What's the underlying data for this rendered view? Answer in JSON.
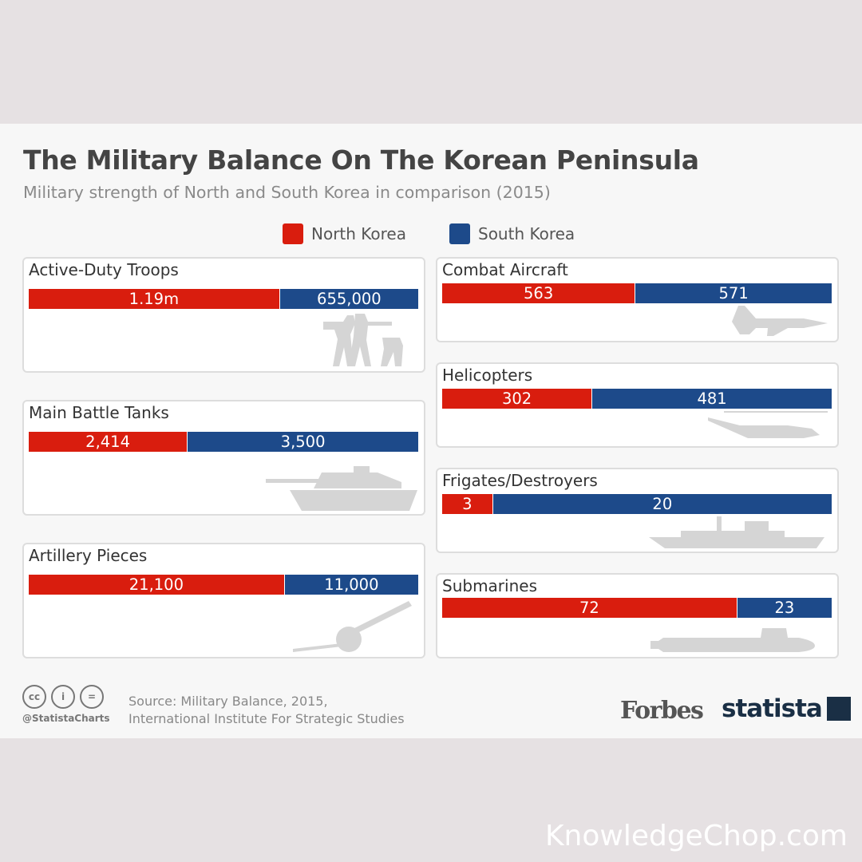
{
  "colors": {
    "north_korea": "#d91d0e",
    "south_korea": "#1d4a8a"
  },
  "chart_data": {
    "type": "bar",
    "title": "The Military Balance On The Korean Peninsula",
    "subtitle": "Military strength of North and South Korea in comparison (2015)",
    "legend": [
      "North Korea",
      "South Korea"
    ],
    "legend_position": "top",
    "series_names": [
      "North Korea",
      "South Korea"
    ],
    "panels": [
      {
        "category": "Active-Duty Troops",
        "north": 1190000,
        "south": 655000,
        "north_label": "1.19m",
        "south_label": "655,000",
        "icon": "soldiers-icon"
      },
      {
        "category": "Main Battle Tanks",
        "north": 2414,
        "south": 3500,
        "north_label": "2,414",
        "south_label": "3,500",
        "icon": "tank-icon"
      },
      {
        "category": "Artillery Pieces",
        "north": 21100,
        "south": 11000,
        "north_label": "21,100",
        "south_label": "11,000",
        "icon": "artillery-icon"
      },
      {
        "category": "Combat Aircraft",
        "north": 563,
        "south": 571,
        "north_label": "563",
        "south_label": "571",
        "icon": "jet-icon"
      },
      {
        "category": "Helicopters",
        "north": 302,
        "south": 481,
        "north_label": "302",
        "south_label": "481",
        "icon": "helicopter-icon"
      },
      {
        "category": "Frigates/Destroyers",
        "north": 3,
        "south": 20,
        "north_label": "3",
        "south_label": "20",
        "icon": "warship-icon"
      },
      {
        "category": "Submarines",
        "north": 72,
        "south": 23,
        "north_label": "72",
        "south_label": "23",
        "icon": "submarine-icon"
      }
    ]
  },
  "footer": {
    "source_line1": "Source: Military Balance, 2015,",
    "source_line2": "International Institute For Strategic Studies",
    "handle": "@StatistaCharts",
    "cc_icons": [
      "cc",
      "i",
      "="
    ],
    "logo_forbes": "Forbes",
    "logo_statista": "statista"
  },
  "watermark": "KnowledgeChop.com"
}
